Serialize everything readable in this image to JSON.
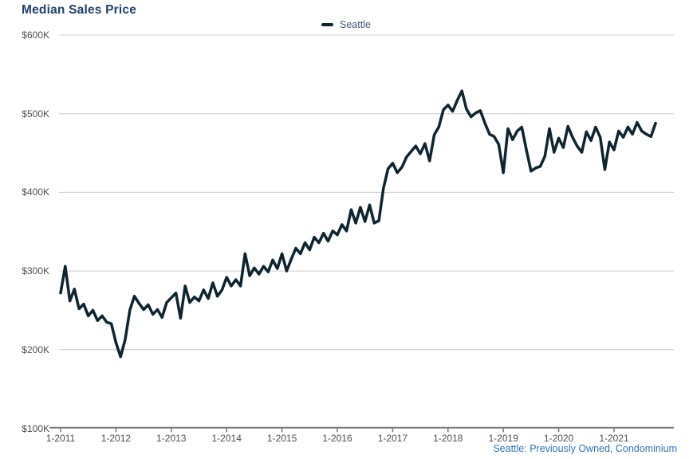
{
  "header": {
    "title": "Median Sales Price"
  },
  "legend": {
    "items": [
      {
        "label": "Seattle"
      }
    ]
  },
  "footer": {
    "source_note": "Seattle: Previously Owned, Condominium"
  },
  "colors": {
    "title": "#1f4068",
    "legend_text": "#3f5875",
    "axis_label": "#4f4f4f",
    "gridline": "#cccccc",
    "axis_line": "#7a7a7a",
    "line": "#0e242f",
    "source_note": "#2e74b5",
    "background": "#ffffff"
  },
  "chart_data": {
    "type": "line",
    "title": "Median Sales Price",
    "legend_position": "top-center",
    "grid": "horizontal",
    "frequency": "monthly",
    "x_start": "2011-01",
    "x_end": "2021-10",
    "values_unit": "USD thousands",
    "ylim_k": [
      100,
      600
    ],
    "y_ticks": [
      {
        "label": "$600K",
        "value": 600
      },
      {
        "label": "$500K",
        "value": 500
      },
      {
        "label": "$400K",
        "value": 400
      },
      {
        "label": "$300K",
        "value": 300
      },
      {
        "label": "$200K",
        "value": 200
      },
      {
        "label": "$100K",
        "value": 100
      }
    ],
    "x_tick_labels": [
      "1-2011",
      "1-2012",
      "1-2013",
      "1-2014",
      "1-2015",
      "1-2016",
      "1-2017",
      "1-2018",
      "1-2019",
      "1-2020",
      "1-2021"
    ],
    "series": [
      {
        "name": "Seattle",
        "values_k": [
          272,
          306,
          262,
          277,
          252,
          258,
          243,
          250,
          237,
          243,
          235,
          233,
          209,
          191,
          213,
          250,
          268,
          259,
          251,
          257,
          245,
          251,
          241,
          260,
          266,
          272,
          240,
          281,
          260,
          267,
          262,
          276,
          265,
          285,
          268,
          276,
          292,
          281,
          289,
          281,
          322,
          294,
          304,
          296,
          306,
          299,
          314,
          303,
          322,
          300,
          315,
          329,
          322,
          336,
          327,
          343,
          336,
          348,
          338,
          351,
          346,
          359,
          351,
          378,
          361,
          381,
          363,
          384,
          361,
          364,
          405,
          430,
          437,
          425,
          432,
          445,
          452,
          459,
          449,
          462,
          440,
          473,
          483,
          505,
          511,
          503,
          517,
          529,
          506,
          496,
          501,
          504,
          488,
          474,
          471,
          461,
          425,
          481,
          467,
          478,
          483,
          454,
          427,
          431,
          433,
          446,
          481,
          451,
          469,
          457,
          484,
          470,
          459,
          451,
          477,
          466,
          483,
          470,
          429,
          464,
          454,
          478,
          470,
          483,
          474,
          489,
          478,
          474,
          471,
          488
        ]
      }
    ]
  }
}
